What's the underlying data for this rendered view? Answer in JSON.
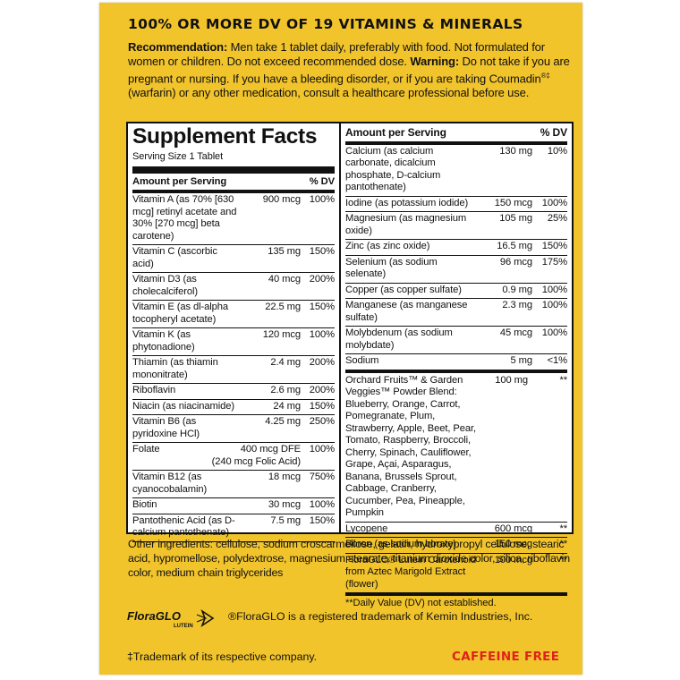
{
  "heading": "100% OR MORE DV OF 19 VITAMINS & MINERALS",
  "intro": {
    "rec_label": "Recommendation:",
    "rec_text": " Men take 1 tablet daily, preferably with food. Not formulated for women or children. Do not exceed recommended dose. ",
    "warn_label": "Warning:",
    "warn_text1": " Do not take if you are pregnant or nursing. If you have a bleeding disorder, or if you are taking Coumadin",
    "warn_sup": "®‡",
    "warn_text2": " (warfarin) or any other medication, consult a healthcare professional before use."
  },
  "facts": {
    "title": "Supplement Facts",
    "serving": "Serving Size 1 Tablet",
    "hdr_amount": "Amount per Serving",
    "hdr_dv": "% DV",
    "left": [
      {
        "name": "Vitamin A (as 70% [630 mcg] retinyl acetate and 30% [270 mcg] beta carotene)",
        "amt": "900 mcg",
        "dv": "100%"
      },
      {
        "name": "Vitamin C (ascorbic acid)",
        "amt": "135 mg",
        "dv": "150%"
      },
      {
        "name": "Vitamin D3 (as cholecalciferol)",
        "amt": "40 mcg",
        "dv": "200%"
      },
      {
        "name": "Vitamin E (as dl-alpha tocopheryl acetate)",
        "amt": "22.5 mg",
        "dv": "150%"
      },
      {
        "name": "Vitamin K (as phytonadione)",
        "amt": "120 mcg",
        "dv": "100%"
      },
      {
        "name": "Thiamin (as thiamin mononitrate)",
        "amt": "2.4 mg",
        "dv": "200%"
      },
      {
        "name": "Riboflavin",
        "amt": "2.6 mg",
        "dv": "200%"
      },
      {
        "name": "Niacin (as niacinamide)",
        "amt": "24 mg",
        "dv": "150%"
      },
      {
        "name": "Vitamin B6 (as pyridoxine HCl)",
        "amt": "4.25 mg",
        "dv": "250%"
      },
      {
        "name": "Folate",
        "amt": "400 mcg DFE",
        "dv": "100%",
        "extra": "(240 mcg Folic Acid)"
      },
      {
        "name": "Vitamin B12 (as cyanocobalamin)",
        "amt": "18 mcg",
        "dv": "750%"
      },
      {
        "name": "Biotin",
        "amt": "30 mcg",
        "dv": "100%"
      },
      {
        "name": "Pantothenic Acid (as D-calcium pantothenate)",
        "amt": "7.5 mg",
        "dv": "150%"
      }
    ],
    "right": [
      {
        "name": "Calcium (as calcium carbonate, dicalcium phosphate, D-calcium pantothenate)",
        "amt": "130 mg",
        "dv": "10%"
      },
      {
        "name": "Iodine (as potassium iodide)",
        "amt": "150 mcg",
        "dv": "100%"
      },
      {
        "name": "Magnesium (as magnesium oxide)",
        "amt": "105 mg",
        "dv": "25%"
      },
      {
        "name": "Zinc (as zinc oxide)",
        "amt": "16.5 mg",
        "dv": "150%"
      },
      {
        "name": "Selenium (as sodium selenate)",
        "amt": "96 mcg",
        "dv": "175%"
      },
      {
        "name": "Copper (as copper sulfate)",
        "amt": "0.9 mg",
        "dv": "100%"
      },
      {
        "name": "Manganese (as manganese sulfate)",
        "amt": "2.3 mg",
        "dv": "100%"
      },
      {
        "name": "Molybdenum (as sodium molybdate)",
        "amt": "45 mcg",
        "dv": "100%"
      },
      {
        "name": "Sodium",
        "amt": "5 mg",
        "dv": "<1%"
      }
    ],
    "blend": {
      "name": "Orchard Fruits™ & Garden Veggies™ Powder Blend: Blueberry, Orange, Carrot, Pomegranate, Plum, Strawberry, Apple, Beet, Pear, Tomato, Raspberry, Broccoli, Cherry, Spinach, Cauliflower, Grape, Açai, Asparagus, Banana, Brussels Sprout, Cabbage, Cranberry, Cucumber, Pea, Pineapple, Pumpkin",
      "amt": "100 mg",
      "dv": "**"
    },
    "extras": [
      {
        "name": "Lycopene",
        "amt": "600 mcg",
        "dv": "**"
      },
      {
        "name": "Boron (as sodium borate)",
        "amt": "150 mcg",
        "dv": "**"
      },
      {
        "name": "FloraGLO® Lutein Carotenoid from Aztec Marigold Extract (flower)",
        "amt": "100 mcg",
        "dv": "**"
      }
    ],
    "footnote": "**Daily Value (DV) not established."
  },
  "other": "Other ingredients: cellulose, sodium croscarmellose, gelatin, hydroxypropyl cellulose, stearic acid, hypromellose, polydextrose, magnesium stearate, titanium dioxide color, silica, riboflavin color, medium chain triglycerides",
  "logo": {
    "main": "FloraGLO",
    "sub": "LUTEIN"
  },
  "trademark": "®FloraGLO is a registered trademark of Kemin Industries, Inc.",
  "dagger_note": "‡Trademark of its respective company.",
  "caffeine": "CAFFEINE FREE",
  "colors": {
    "panel": "#f2c42c",
    "caffeine": "#e0221c"
  }
}
